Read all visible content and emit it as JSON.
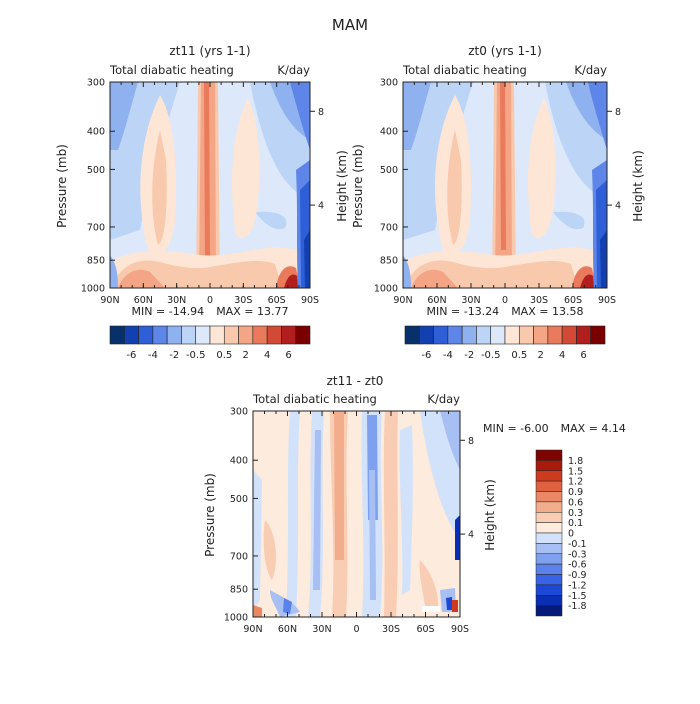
{
  "figure_title": "MAM",
  "colors": {
    "main_scale": [
      "#08306b",
      "#1240b0",
      "#2f5fd6",
      "#5d86e8",
      "#8fb1ef",
      "#bcd4f5",
      "#dde9fa",
      "#fde6d6",
      "#f9c9ad",
      "#f3a585",
      "#e97a5b",
      "#d24a35",
      "#b01e1e",
      "#7a0000"
    ],
    "diff_scale": [
      "#061a7a",
      "#0a2fb5",
      "#1d48d6",
      "#3763e4",
      "#5b82ea",
      "#7fa0ee",
      "#a7bff3",
      "#d2e2fa",
      "#fdebdd",
      "#f8cdb3",
      "#f2ad8c",
      "#ea8764",
      "#e0613f",
      "#cc3b1e",
      "#a81a0c",
      "#7d0400"
    ]
  },
  "chart_data": [
    {
      "type": "heatmap",
      "title": "zt11 (yrs 1-1)",
      "subtitle_left": "Total diabatic heating",
      "subtitle_right": "K/day",
      "ylabel": "Pressure (mb)",
      "ylabel_right": "Height (km)",
      "x_ticks": [
        "90N",
        "60N",
        "30N",
        "0",
        "30S",
        "60S",
        "90S"
      ],
      "x_range": [
        90,
        -90
      ],
      "y_ticks": [
        "300",
        "400",
        "500",
        "700",
        "850",
        "1000"
      ],
      "y_range": [
        300,
        1000
      ],
      "y_scale": "log",
      "height_ticks": [
        "8",
        "4"
      ],
      "min_label": "MIN = -14.94",
      "max_label": "MAX = 13.77",
      "colorbar_labels": [
        "-6",
        "-4",
        "-2",
        "-0.5",
        "0.5",
        "2",
        "4",
        "6"
      ]
    },
    {
      "type": "heatmap",
      "title": "zt0 (yrs 1-1)",
      "subtitle_left": "Total diabatic heating",
      "subtitle_right": "K/day",
      "ylabel": "Pressure (mb)",
      "ylabel_right": "Height (km)",
      "x_ticks": [
        "90N",
        "60N",
        "30N",
        "0",
        "30S",
        "60S",
        "90S"
      ],
      "x_range": [
        90,
        -90
      ],
      "y_ticks": [
        "300",
        "400",
        "500",
        "700",
        "850",
        "1000"
      ],
      "y_range": [
        300,
        1000
      ],
      "y_scale": "log",
      "height_ticks": [
        "8",
        "4"
      ],
      "min_label": "MIN = -13.24",
      "max_label": "MAX = 13.58",
      "colorbar_labels": [
        "-6",
        "-4",
        "-2",
        "-0.5",
        "0.5",
        "2",
        "4",
        "6"
      ]
    },
    {
      "type": "heatmap",
      "title": "zt11 - zt0",
      "subtitle_left": "Total diabatic heating",
      "subtitle_right": "K/day",
      "ylabel": "Pressure (mb)",
      "ylabel_right": "Height (km)",
      "x_ticks": [
        "90N",
        "60N",
        "30N",
        "0",
        "30S",
        "60S",
        "90S"
      ],
      "x_range": [
        90,
        -90
      ],
      "y_ticks": [
        "300",
        "400",
        "500",
        "700",
        "850",
        "1000"
      ],
      "y_range": [
        300,
        1000
      ],
      "y_scale": "log",
      "height_ticks": [
        "8",
        "4"
      ],
      "min_label": "MIN = -6.00",
      "max_label": "MAX = 4.14",
      "colorbar_labels": [
        "1.8",
        "1.5",
        "1.2",
        "0.9",
        "0.6",
        "0.3",
        "0.1",
        "0",
        "-0.1",
        "-0.3",
        "-0.6",
        "-0.9",
        "-1.2",
        "-1.5",
        "-1.8"
      ]
    }
  ]
}
